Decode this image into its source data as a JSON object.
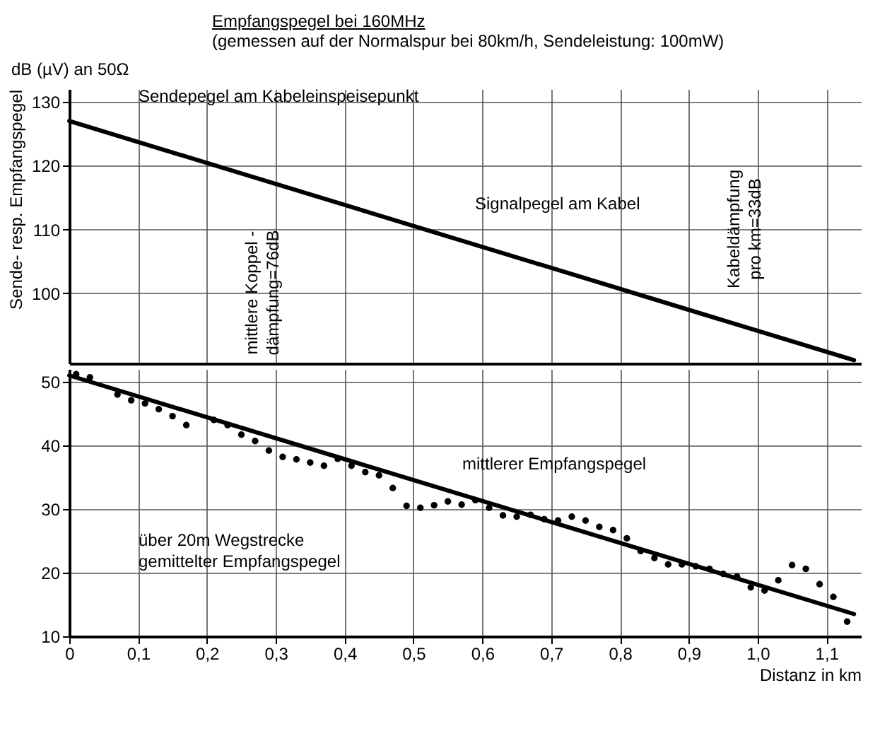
{
  "chart_data": [
    {
      "type": "line",
      "title": "Empfangspegel bei 160MHz",
      "subtitle": "(gemessen auf der Normalspur bei 80km/h, Sendeleistung: 100mW)",
      "ylabel": "Sende- resp. Empfangspegel",
      "xlim": [
        0,
        1.15
      ],
      "xticks": [
        0.1,
        0.2,
        0.3,
        0.4,
        0.5,
        0.6,
        0.7,
        0.8,
        0.9,
        1.0,
        1.1
      ],
      "ylim": [
        89,
        132
      ],
      "yticks": [
        100,
        110,
        120,
        130
      ],
      "grid": true,
      "tick_labels": "y",
      "series": [
        {
          "type": "line",
          "color": "#000000",
          "x": [
            0,
            1.14
          ],
          "values": [
            127,
            89.5
          ]
        }
      ],
      "annotations": [
        "dB (µV) an 50Ω",
        "Sendepegel am Kabeleinspeisepunkt",
        "Signalpegel am Kabel",
        "mittlere Koppel -\ndämpfung=76dB",
        "Kabeldämpfung\npro km=33dB"
      ]
    },
    {
      "type": "line",
      "xlabel": "Distanz in km",
      "xlim": [
        0,
        1.15
      ],
      "xticks": [
        {
          "value": 0,
          "label": "0"
        },
        {
          "value": 0.1,
          "label": "0,1"
        },
        {
          "value": 0.2,
          "label": "0,2"
        },
        {
          "value": 0.3,
          "label": "0,3"
        },
        {
          "value": 0.4,
          "label": "0,4"
        },
        {
          "value": 0.5,
          "label": "0,5"
        },
        {
          "value": 0.6,
          "label": "0,6"
        },
        {
          "value": 0.7,
          "label": "0,7"
        },
        {
          "value": 0.8,
          "label": "0,8"
        },
        {
          "value": 0.9,
          "label": "0,9"
        },
        {
          "value": 1.0,
          "label": "1,0"
        },
        {
          "value": 1.1,
          "label": "1,1"
        }
      ],
      "ylim": [
        10,
        52
      ],
      "yticks": [
        10,
        20,
        30,
        40,
        50
      ],
      "grid": true,
      "series": [
        {
          "type": "line",
          "color": "#000000",
          "x": [
            0,
            1.14
          ],
          "values": [
            51,
            13.5
          ]
        },
        {
          "type": "scatter",
          "color": "#000000",
          "marker": "circle",
          "x": [
            0.01,
            0.03,
            0.07,
            0.09,
            0.11,
            0.13,
            0.15,
            0.17,
            0.21,
            0.23,
            0.25,
            0.27,
            0.29,
            0.31,
            0.33,
            0.35,
            0.37,
            0.39,
            0.41,
            0.43,
            0.45,
            0.47,
            0.49,
            0.51,
            0.53,
            0.55,
            0.57,
            0.59,
            0.61,
            0.63,
            0.65,
            0.67,
            0.69,
            0.71,
            0.73,
            0.75,
            0.77,
            0.79,
            0.81,
            0.83,
            0.85,
            0.87,
            0.89,
            0.91,
            0.93,
            0.95,
            0.97,
            0.99,
            1.01,
            1.03,
            1.05,
            1.07,
            1.09,
            1.11,
            1.13
          ],
          "values": [
            51.2,
            50.7,
            48.0,
            47.1,
            46.6,
            45.7,
            44.6,
            43.2,
            44.0,
            43.2,
            41.7,
            40.7,
            39.2,
            38.2,
            37.8,
            37.3,
            36.8,
            37.9,
            36.8,
            35.8,
            35.3,
            33.3,
            30.5,
            30.2,
            30.6,
            31.2,
            30.7,
            31.4,
            30.2,
            29.0,
            28.8,
            29.1,
            28.4,
            28.2,
            28.8,
            28.2,
            27.2,
            26.7,
            25.4,
            23.4,
            22.3,
            21.3,
            21.3,
            21.0,
            20.6,
            19.8,
            19.4,
            17.7,
            17.2,
            18.8,
            21.2,
            20.6,
            18.2,
            16.2,
            12.3
          ]
        }
      ],
      "annotations": [
        "mittlerer Empfangspegel",
        "über 20m Wegstrecke\ngemittelter Empfangspegel"
      ]
    }
  ]
}
